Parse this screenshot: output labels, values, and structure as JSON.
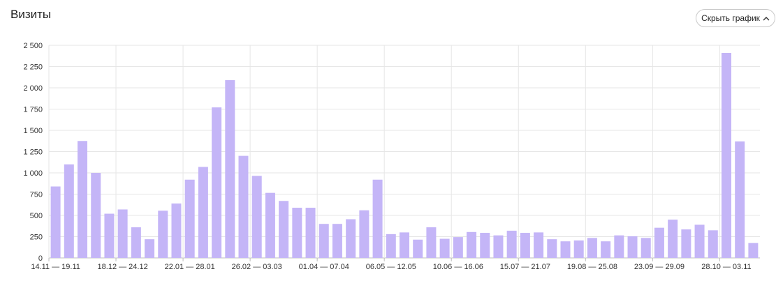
{
  "header": {
    "title": "Визиты",
    "hide_button_label": "Скрыть график",
    "hide_button_icon": "chevron-up-icon"
  },
  "chart_data": {
    "type": "bar",
    "title": "Визиты",
    "xlabel": "",
    "ylabel": "",
    "ylim": [
      0,
      2500
    ],
    "y_ticks": [
      0,
      250,
      500,
      750,
      1000,
      1250,
      1500,
      1750,
      2000,
      2250,
      2500
    ],
    "y_tick_labels": [
      "0",
      "250",
      "500",
      "750",
      "1 000",
      "1 250",
      "1 500",
      "1 750",
      "2 000",
      "2 250",
      "2 500"
    ],
    "x_tick_labels": [
      {
        "index": 0,
        "label": "14.11 — 19.11"
      },
      {
        "index": 5,
        "label": "18.12 — 24.12"
      },
      {
        "index": 10,
        "label": "22.01 — 28.01"
      },
      {
        "index": 15,
        "label": "26.02 — 03.03"
      },
      {
        "index": 20,
        "label": "01.04 — 07.04"
      },
      {
        "index": 25,
        "label": "06.05 — 12.05"
      },
      {
        "index": 30,
        "label": "10.06 — 16.06"
      },
      {
        "index": 35,
        "label": "15.07 — 21.07"
      },
      {
        "index": 40,
        "label": "19.08 — 25.08"
      },
      {
        "index": 45,
        "label": "23.09 — 29.09"
      },
      {
        "index": 50,
        "label": "28.10 — 03.11"
      }
    ],
    "values": [
      840,
      1100,
      1375,
      1000,
      520,
      570,
      360,
      220,
      555,
      640,
      920,
      1070,
      1770,
      2090,
      1200,
      965,
      765,
      670,
      590,
      590,
      400,
      400,
      455,
      560,
      920,
      280,
      300,
      215,
      360,
      225,
      245,
      305,
      295,
      265,
      320,
      295,
      300,
      220,
      195,
      205,
      235,
      195,
      265,
      255,
      235,
      355,
      450,
      335,
      390,
      325,
      2410,
      1370,
      175
    ],
    "bar_color": "#c4b5f7",
    "grid": true
  }
}
